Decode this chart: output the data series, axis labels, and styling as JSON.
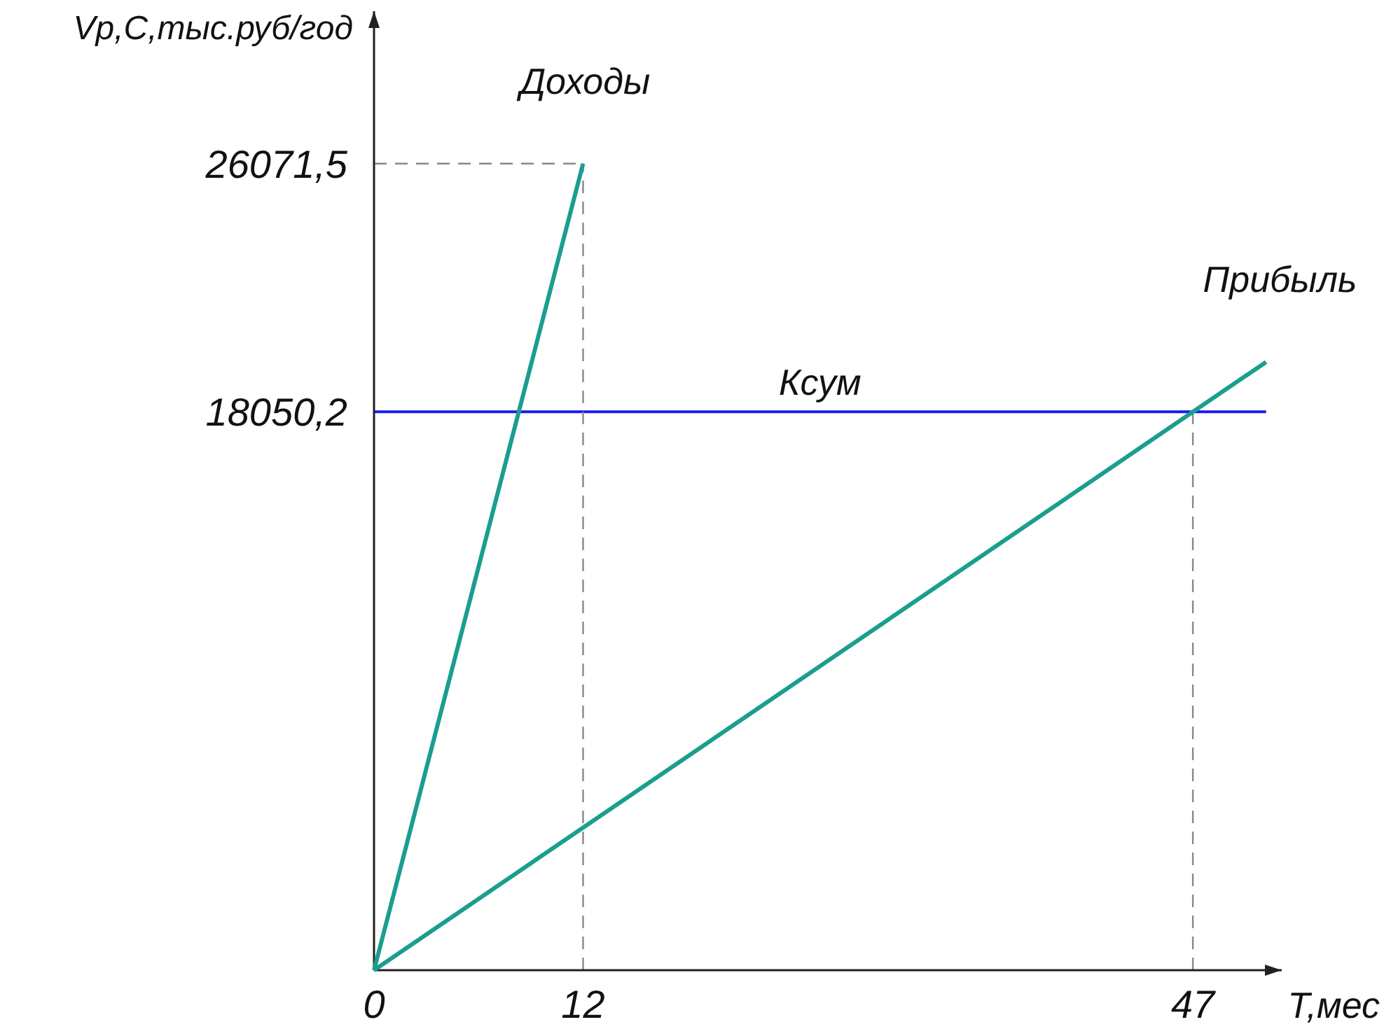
{
  "chart_data": {
    "type": "line",
    "xlabel": "Т,мес",
    "ylabel": "Vр,С,тыс.руб/год",
    "xlim": [
      0,
      52.1
    ],
    "ylim": [
      0,
      31000
    ],
    "xticks": [
      0,
      12,
      47
    ],
    "yticks": [
      {
        "value": 18050.2,
        "label": "18050,2"
      },
      {
        "value": 26071.5,
        "label": "26071,5"
      }
    ],
    "series": [
      {
        "name": "Доходы",
        "color": "#1a9e8f",
        "x": [
          0,
          12
        ],
        "values": [
          0,
          26071.5
        ]
      },
      {
        "name": "Прибыль",
        "color": "#1a9e8f",
        "x": [
          0,
          51.2
        ],
        "values": [
          0,
          19660
        ]
      }
    ],
    "ref_lines": [
      {
        "axis": "y",
        "value": 18050.2,
        "label": "Ксум",
        "color": "#1a1aee",
        "line_style": "solid"
      },
      {
        "axis": "x",
        "value": 12,
        "color": "#888888",
        "line_style": "dashed"
      },
      {
        "axis": "x",
        "value": 47,
        "color": "#888888",
        "line_style": "dashed"
      },
      {
        "axis": "y",
        "value": 26071.5,
        "color": "#888888",
        "line_style": "dashed"
      }
    ],
    "grid": false,
    "marker": "none",
    "line_style": "solid"
  }
}
